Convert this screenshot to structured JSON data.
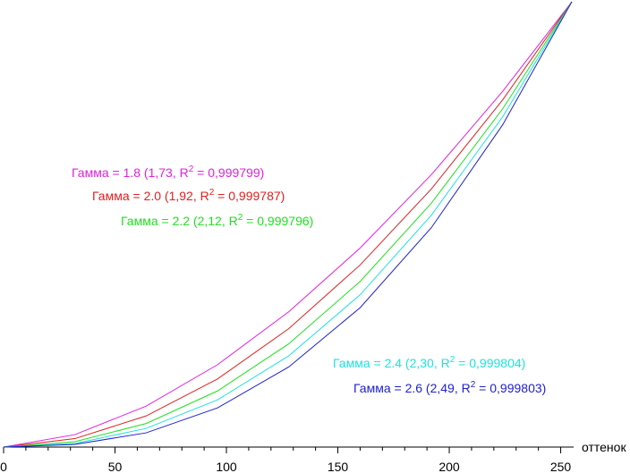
{
  "chart_data": {
    "type": "line",
    "x_label": "оттенок",
    "x": [
      0,
      32,
      64,
      96,
      128,
      160,
      192,
      224,
      255
    ],
    "xlim": [
      0,
      255
    ],
    "xticks": [
      0,
      50,
      100,
      150,
      200,
      250
    ],
    "xminorticks": [
      10,
      20,
      30,
      40,
      60,
      70,
      80,
      90,
      110,
      120,
      130,
      140,
      160,
      170,
      180,
      190,
      210,
      220,
      230,
      240
    ],
    "ylim": [
      0,
      1
    ],
    "series": [
      {
        "color": "#e020e0",
        "label": {
          "before": "Гамма = 1.8 (1,73, R",
          "sup": "2",
          "after": " = 0,999799)"
        },
        "values": [
          0,
          0.028,
          0.092,
          0.185,
          0.304,
          0.447,
          0.612,
          0.799,
          1
        ]
      },
      {
        "color": "#e02020",
        "label": {
          "before": "Гамма = 2.0 (1,92, R",
          "sup": "2",
          "after": " = 0,999787)"
        },
        "values": [
          0,
          0.019,
          0.07,
          0.153,
          0.266,
          0.409,
          0.58,
          0.78,
          1
        ]
      },
      {
        "color": "#20e020",
        "label": {
          "before": "Гамма = 2.2 (2,12, R",
          "sup": "2",
          "after": " = 0,999796)"
        },
        "values": [
          0,
          0.012,
          0.053,
          0.126,
          0.232,
          0.372,
          0.548,
          0.76,
          1
        ]
      },
      {
        "color": "#20e0e0",
        "label": {
          "before": "Гамма = 2.4 (2,30, R",
          "sup": "2",
          "after": " = 0,999804)"
        },
        "values": [
          0,
          0.008,
          0.042,
          0.106,
          0.205,
          0.342,
          0.521,
          0.742,
          1
        ]
      },
      {
        "color": "#2020d0",
        "label": {
          "before": "Гамма = 2.6 (2,49, R",
          "sup": "2",
          "after": " = 0,999803)"
        },
        "values": [
          0,
          0.006,
          0.032,
          0.088,
          0.18,
          0.313,
          0.493,
          0.724,
          1
        ]
      }
    ]
  }
}
